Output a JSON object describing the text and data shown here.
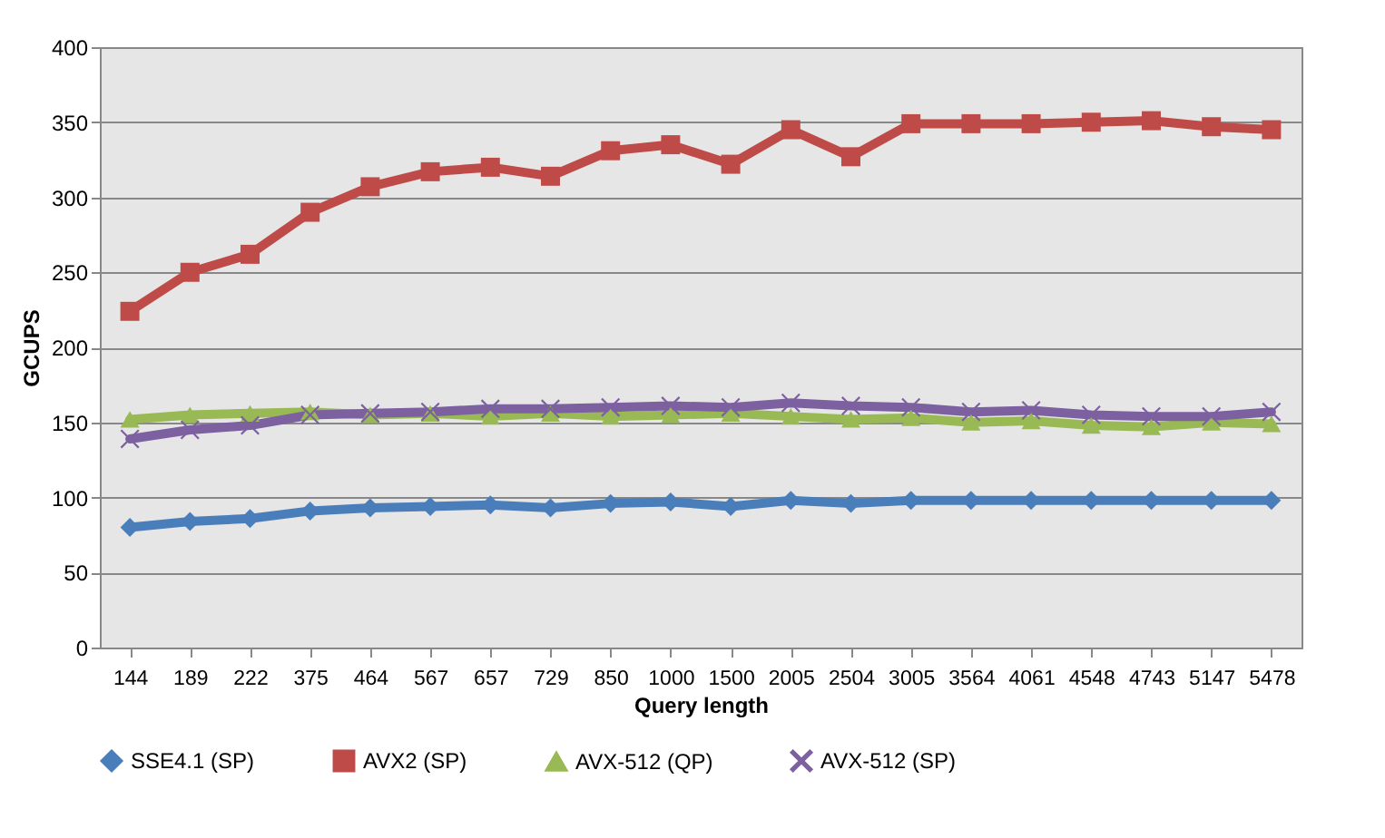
{
  "chart_data": {
    "type": "line",
    "xlabel": "Query length",
    "ylabel": "GCUPS",
    "categories": [
      "144",
      "189",
      "222",
      "375",
      "464",
      "567",
      "657",
      "729",
      "850",
      "1000",
      "1500",
      "2005",
      "2504",
      "3005",
      "3564",
      "4061",
      "4548",
      "4743",
      "5147",
      "5478"
    ],
    "ylim": [
      0,
      400
    ],
    "yticks": [
      0,
      50,
      100,
      150,
      200,
      250,
      300,
      350,
      400
    ],
    "grid": "y",
    "legend": "bottom",
    "series": [
      {
        "name": "SSE4.1 (SP)",
        "color": "#4a7ebb",
        "marker": "diamond",
        "values": [
          80,
          84,
          86,
          91,
          93,
          94,
          95,
          93,
          96,
          97,
          94,
          98,
          96,
          98,
          98,
          98,
          98,
          98,
          98,
          98
        ]
      },
      {
        "name": "AVX2 (SP)",
        "color": "#be4b48",
        "marker": "square",
        "values": [
          224,
          250,
          262,
          290,
          307,
          317,
          320,
          314,
          331,
          335,
          322,
          345,
          327,
          349,
          349,
          349,
          350,
          351,
          347,
          345
        ]
      },
      {
        "name": "AVX-512 (QP)",
        "color": "#98b954",
        "marker": "triangle",
        "values": [
          152,
          155,
          156,
          157,
          155,
          156,
          154,
          156,
          154,
          155,
          156,
          154,
          152,
          153,
          150,
          151,
          148,
          147,
          150,
          149
        ]
      },
      {
        "name": "AVX-512 (SP)",
        "color": "#7d60a0",
        "marker": "cross",
        "values": [
          139,
          145,
          148,
          155,
          156,
          157,
          159,
          159,
          160,
          161,
          160,
          163,
          161,
          160,
          157,
          158,
          155,
          154,
          154,
          157
        ]
      }
    ]
  }
}
